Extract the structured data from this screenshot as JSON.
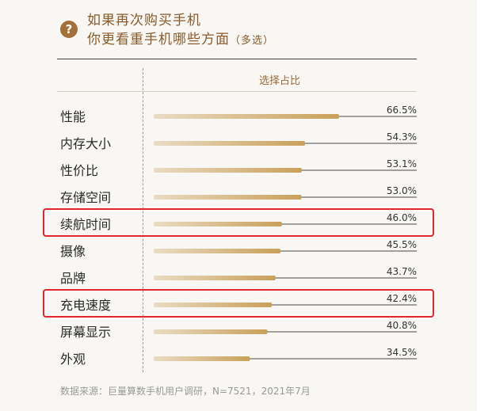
{
  "header": {
    "title_line1": "如果再次购买手机",
    "title_line2_main": "你更看重手机哪些方面",
    "title_line2_note": "（多选）",
    "question_icon": "?"
  },
  "column_header": "选择占比",
  "source": "数据来源：巨量算数手机用户调研，N=7521，2021年7月",
  "highlighted_categories": [
    "续航时间",
    "充电速度"
  ],
  "colors": {
    "bar_start": "#e9dcc4",
    "bar_end": "#c9a05a",
    "highlight": "#e3262b",
    "accent": "#a3703a"
  },
  "chart_data": {
    "type": "bar",
    "orientation": "horizontal",
    "title": "",
    "xlabel": "",
    "ylabel": "",
    "categories": [
      "性能",
      "内存大小",
      "性价比",
      "存储空间",
      "续航时间",
      "摄像",
      "品牌",
      "充电速度",
      "屏幕显示",
      "外观"
    ],
    "values": [
      66.5,
      54.3,
      53.1,
      53.0,
      46.0,
      45.5,
      43.7,
      42.4,
      40.8,
      34.5
    ],
    "value_labels": [
      "66.5%",
      "54.3%",
      "53.1%",
      "53.0%",
      "46.0%",
      "45.5%",
      "43.7%",
      "42.4%",
      "40.8%",
      "34.5%"
    ],
    "unit": "%",
    "xlim": [
      0,
      100
    ],
    "grid": false,
    "legend": "none"
  }
}
